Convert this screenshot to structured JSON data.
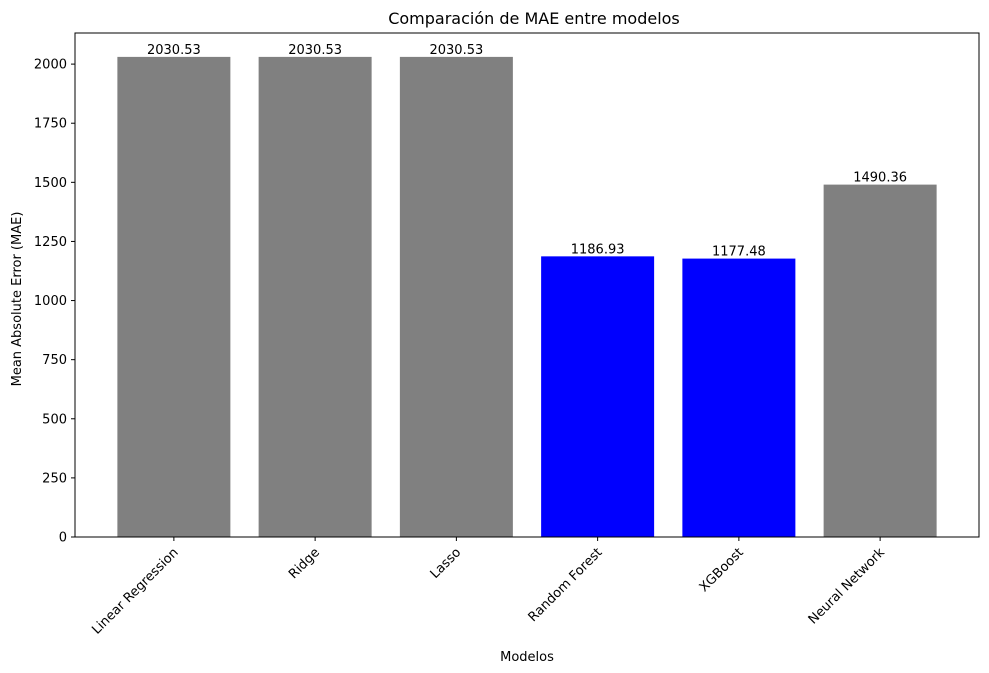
{
  "chart_data": {
    "type": "bar",
    "title": "Comparación de MAE entre modelos",
    "xlabel": "Modelos",
    "ylabel": "Mean Absolute Error (MAE)",
    "categories": [
      "Linear Regression",
      "Ridge",
      "Lasso",
      "Random Forest",
      "XGBoost",
      "Neural Network"
    ],
    "values": [
      2030.53,
      2030.53,
      2030.53,
      1186.93,
      1177.48,
      1490.36
    ],
    "data_labels": [
      "2030.53",
      "2030.53",
      "2030.53",
      "1186.93",
      "1177.48",
      "1490.36"
    ],
    "bar_colors": [
      "#808080",
      "#808080",
      "#808080",
      "#0000ff",
      "#0000ff",
      "#808080"
    ],
    "ylim": [
      0,
      2131.56
    ],
    "yticks": [
      0,
      250,
      500,
      750,
      1000,
      1250,
      1500,
      1750,
      2000
    ],
    "ytick_labels": [
      "0",
      "250",
      "500",
      "750",
      "1000",
      "1250",
      "1500",
      "1750",
      "2000"
    ],
    "x_tick_rotation": 45,
    "grid": false,
    "legend": "none"
  }
}
